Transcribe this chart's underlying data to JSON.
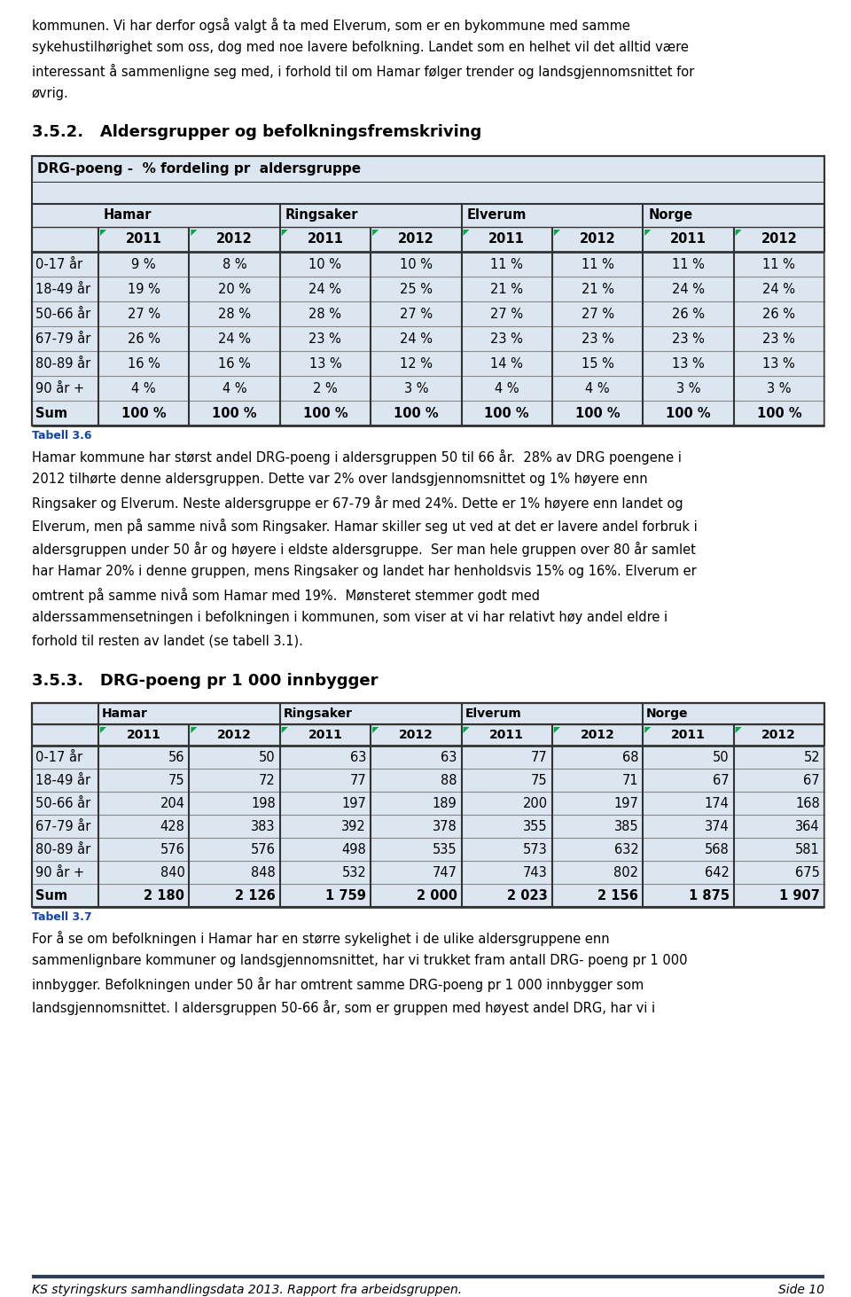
{
  "page_bg": "#ffffff",
  "text_color": "#000000",
  "intro_paragraphs": [
    "kommunen. Vi har derfor også valgt å ta med Elverum, som er en bykommune med samme",
    "sykehustilhørighet som oss, dog med noe lavere befolkning. Landet som en helhet vil det alltid være",
    "interessant å sammenligne seg med, i forhold til om Hamar følger trender og landsgjennomsnittet for",
    "øvrig."
  ],
  "section1_heading": "3.5.2.   Aldersgrupper og befolkningsfremskriving",
  "table1_title": "DRG-poeng -  % fordeling pr  aldersgruppe",
  "table_bg": "#dce6f1",
  "col_groups": [
    "Hamar",
    "Ringsaker",
    "Elverum",
    "Norge"
  ],
  "years": [
    "2011",
    "2012",
    "2011",
    "2012",
    "2011",
    "2012",
    "2011",
    "2012"
  ],
  "table1_rows": [
    {
      "label": "0-17 år",
      "bold": false,
      "values": [
        "9 %",
        "8 %",
        "10 %",
        "10 %",
        "11 %",
        "11 %",
        "11 %",
        "11 %"
      ]
    },
    {
      "label": "18-49 år",
      "bold": false,
      "values": [
        "19 %",
        "20 %",
        "24 %",
        "25 %",
        "21 %",
        "21 %",
        "24 %",
        "24 %"
      ]
    },
    {
      "label": "50-66 år",
      "bold": false,
      "values": [
        "27 %",
        "28 %",
        "28 %",
        "27 %",
        "27 %",
        "27 %",
        "26 %",
        "26 %"
      ]
    },
    {
      "label": "67-79 år",
      "bold": false,
      "values": [
        "26 %",
        "24 %",
        "23 %",
        "24 %",
        "23 %",
        "23 %",
        "23 %",
        "23 %"
      ]
    },
    {
      "label": "80-89 år",
      "bold": false,
      "values": [
        "16 %",
        "16 %",
        "13 %",
        "12 %",
        "14 %",
        "15 %",
        "13 %",
        "13 %"
      ]
    },
    {
      "label": "90 år +",
      "bold": false,
      "values": [
        "4 %",
        "4 %",
        "2 %",
        "3 %",
        "4 %",
        "4 %",
        "3 %",
        "3 %"
      ]
    },
    {
      "label": "Sum",
      "bold": true,
      "values": [
        "100 %",
        "100 %",
        "100 %",
        "100 %",
        "100 %",
        "100 %",
        "100 %",
        "100 %"
      ]
    }
  ],
  "tabell1_label": "Tabell 3.6",
  "body1_lines": [
    "Hamar kommune har størst andel DRG-poeng i aldersgruppen 50 til 66 år.  28% av DRG poengene i",
    "2012 tilhørte denne aldersgruppen. Dette var 2% over landsgjennomsnittet og 1% høyere enn",
    "Ringsaker og Elverum. Neste aldersgruppe er 67-79 år med 24%. Dette er 1% høyere enn landet og",
    "Elverum, men på samme nivå som Ringsaker. Hamar skiller seg ut ved at det er lavere andel forbruk i",
    "aldersgruppen under 50 år og høyere i eldste aldersgruppe.  Ser man hele gruppen over 80 år samlet",
    "har Hamar 20% i denne gruppen, mens Ringsaker og landet har henholdsvis 15% og 16%. Elverum er",
    "omtrent på samme nivå som Hamar med 19%.  Mønsteret stemmer godt med",
    "alderssammensetningen i befolkningen i kommunen, som viser at vi har relativt høy andel eldre i",
    "forhold til resten av landet (se tabell 3.1)."
  ],
  "section2_heading": "3.5.3.   DRG-poeng pr 1 000 innbygger",
  "table2_rows": [
    {
      "label": "0-17 år",
      "bold": false,
      "values": [
        "56",
        "50",
        "63",
        "63",
        "77",
        "68",
        "50",
        "52"
      ]
    },
    {
      "label": "18-49 år",
      "bold": false,
      "values": [
        "75",
        "72",
        "77",
        "88",
        "75",
        "71",
        "67",
        "67"
      ]
    },
    {
      "label": "50-66 år",
      "bold": false,
      "values": [
        "204",
        "198",
        "197",
        "189",
        "200",
        "197",
        "174",
        "168"
      ]
    },
    {
      "label": "67-79 år",
      "bold": false,
      "values": [
        "428",
        "383",
        "392",
        "378",
        "355",
        "385",
        "374",
        "364"
      ]
    },
    {
      "label": "80-89 år",
      "bold": false,
      "values": [
        "576",
        "576",
        "498",
        "535",
        "573",
        "632",
        "568",
        "581"
      ]
    },
    {
      "label": "90 år +",
      "bold": false,
      "values": [
        "840",
        "848",
        "532",
        "747",
        "743",
        "802",
        "642",
        "675"
      ]
    },
    {
      "label": "Sum",
      "bold": true,
      "values": [
        "2 180",
        "2 126",
        "1 759",
        "2 000",
        "2 023",
        "2 156",
        "1 875",
        "1 907"
      ]
    }
  ],
  "tabell2_label": "Tabell 3.7",
  "body2_lines": [
    "For å se om befolkningen i Hamar har en større sykelighet i de ulike aldersgruppene enn",
    "sammenlignbare kommuner og landsgjennomsnittet, har vi trukket fram antall DRG- poeng pr 1 000",
    "innbygger. Befolkningen under 50 år har omtrent samme DRG-poeng pr 1 000 innbygger som",
    "landsgjennomsnittet. I aldersgruppen 50-66 år, som er gruppen med høyest andel DRG, har vi i"
  ],
  "footer_left": "KS styringskurs samhandlingsdata 2013. Rapport fra arbeidsgruppen.",
  "footer_right": "Side 10",
  "green_color": "#00aa44",
  "dark_border": "#333333",
  "mid_border": "#888888",
  "tabell_color": "#1144aa"
}
